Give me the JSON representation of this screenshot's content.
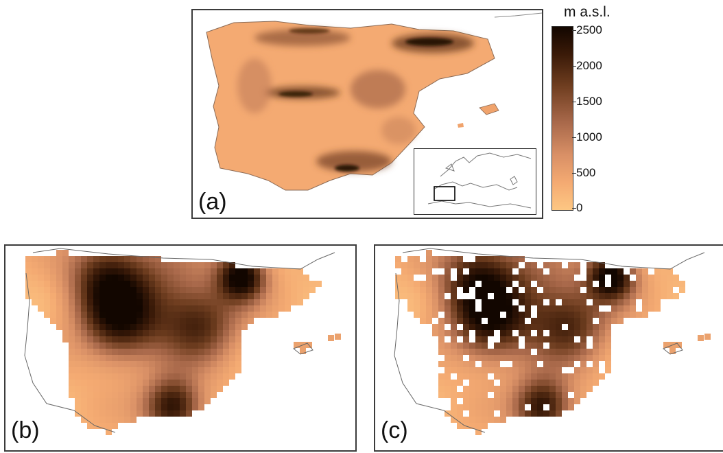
{
  "panels": {
    "a": {
      "label": "(a)"
    },
    "b": {
      "label": "(b)"
    },
    "c": {
      "label": "(c)"
    }
  },
  "legend": {
    "title": "m a.s.l.",
    "ticks": [
      "2500",
      "2000",
      "1500",
      "1000",
      "500",
      "0"
    ],
    "min": 0,
    "max": 2500,
    "colors": {
      "low": "#fdc783",
      "mid": "#d99066",
      "high": "#120600"
    }
  },
  "inset": {
    "icon": "europe-locator-map-icon"
  }
}
